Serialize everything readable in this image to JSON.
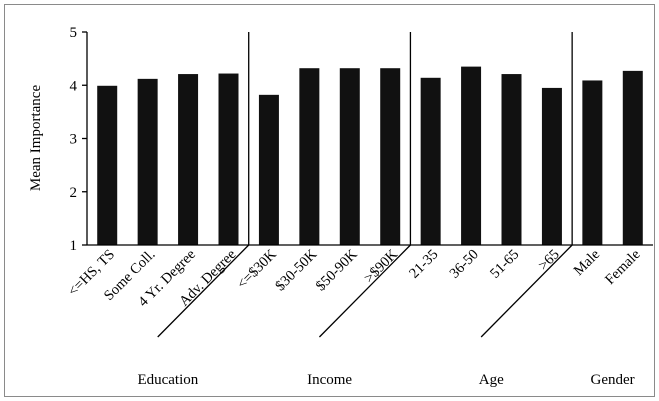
{
  "chart_data": {
    "type": "bar",
    "ylabel": "Mean Importance",
    "ylim": [
      1,
      5
    ],
    "yticks": [
      1,
      2,
      3,
      4,
      5
    ],
    "grid": false,
    "legend": "none",
    "bar_color": "#111111",
    "categories": [
      "<=HS, TS",
      "Some Coll.",
      "4 Yr. Degree",
      "Adv. Degree",
      "<=$30K",
      "$30-50K",
      "$50-90K",
      ">$90K",
      "21-35",
      "36-50",
      "51-65",
      ">65",
      "Male",
      "Female"
    ],
    "values": [
      3.99,
      4.12,
      4.21,
      4.22,
      3.82,
      4.32,
      4.32,
      4.32,
      4.14,
      4.35,
      4.21,
      3.95,
      4.09,
      4.27
    ],
    "groups": [
      {
        "label": "Education",
        "count": 4
      },
      {
        "label": "Income",
        "count": 4
      },
      {
        "label": "Age",
        "count": 4
      },
      {
        "label": "Gender",
        "count": 2
      }
    ]
  }
}
